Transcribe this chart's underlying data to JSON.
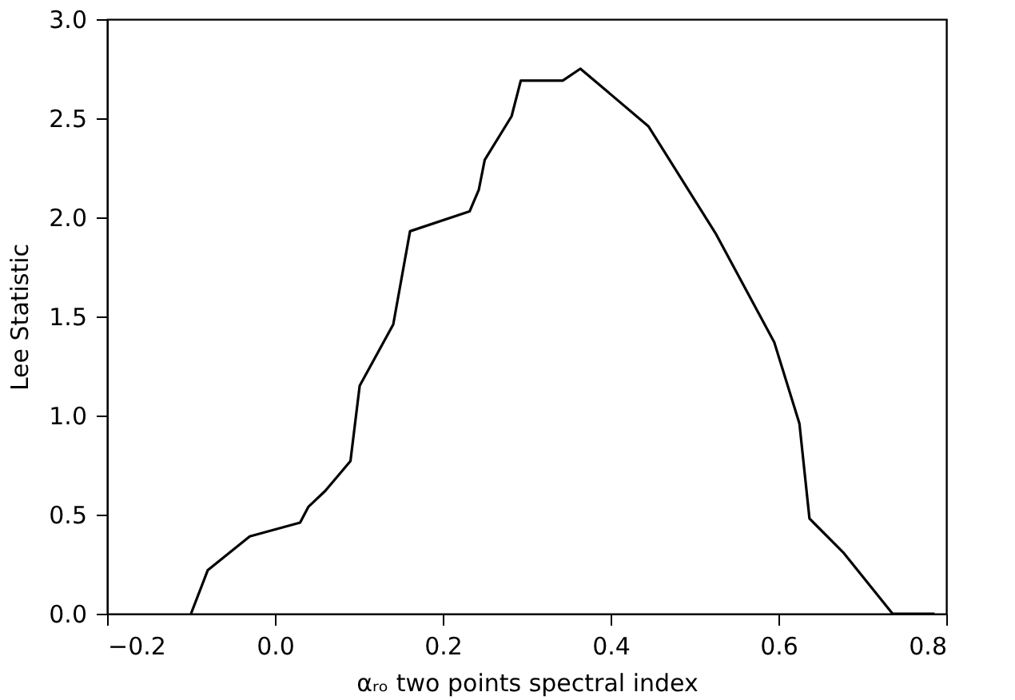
{
  "chart_data": {
    "type": "line",
    "xlabel": "αᵣₒ two points spectral index",
    "ylabel": "Lee Statistic",
    "x": [
      -0.1,
      -0.08,
      -0.03,
      0.03,
      0.04,
      0.06,
      0.09,
      0.101,
      0.141,
      0.161,
      0.232,
      0.243,
      0.25,
      0.282,
      0.293,
      0.343,
      0.364,
      0.445,
      0.525,
      0.595,
      0.625,
      0.637,
      0.677,
      0.736,
      0.786
    ],
    "series": [
      {
        "color": "#000000",
        "values": [
          0,
          0.22,
          0.39,
          0.46,
          0.54,
          0.62,
          0.77,
          1.15,
          1.46,
          1.93,
          2.03,
          2.14,
          2.29,
          2.51,
          2.69,
          2.69,
          2.75,
          2.46,
          1.92,
          1.37,
          0.96,
          0.48,
          0.31,
          0,
          0
        ]
      }
    ],
    "xlim": [
      -0.2,
      0.8
    ],
    "ylim": [
      0,
      3
    ],
    "xticks": [
      {
        "value": -0.2,
        "label": "−0.2"
      },
      {
        "value": 0,
        "label": "0.0"
      },
      {
        "value": 0.2,
        "label": "0.2"
      },
      {
        "value": 0.4,
        "label": "0.4"
      },
      {
        "value": 0.6,
        "label": "0.6"
      },
      {
        "value": 0.8,
        "label": "0.8"
      }
    ],
    "yticks": [
      {
        "value": 0,
        "label": "0.0"
      },
      {
        "value": 0.5,
        "label": "0.5"
      },
      {
        "value": 1,
        "label": "1.0"
      },
      {
        "value": 1.5,
        "label": "1.5"
      },
      {
        "value": 2,
        "label": "2.0"
      },
      {
        "value": 2.5,
        "label": "2.5"
      },
      {
        "value": 3,
        "label": "3.0"
      }
    ],
    "grid": false,
    "legend": false,
    "marker": "none",
    "line_style": "solid"
  }
}
